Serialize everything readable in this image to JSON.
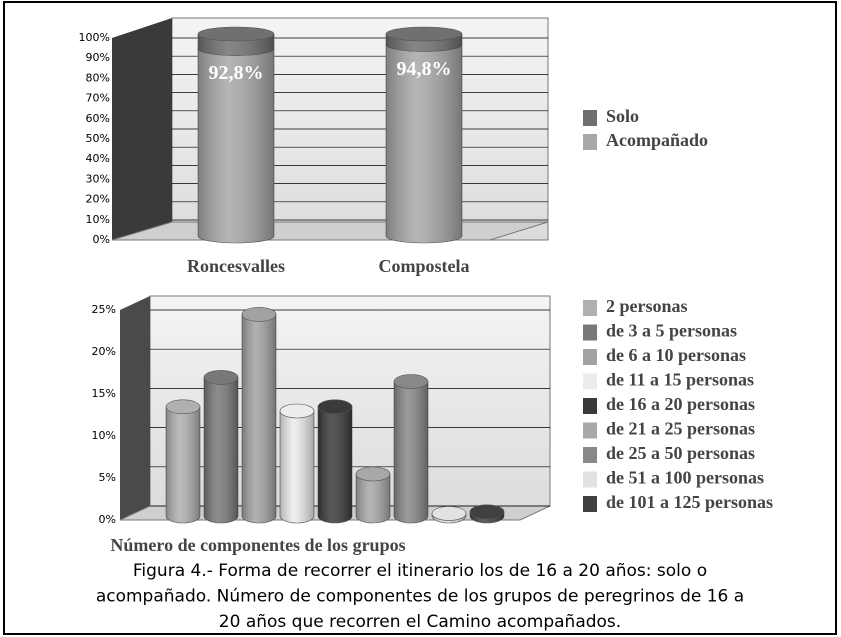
{
  "chart_data": [
    {
      "type": "stacked_bar",
      "categories": [
        "Roncesvalles",
        "Compostela"
      ],
      "series": [
        {
          "name": "Acompañado",
          "color": "#a8a8a8",
          "values": [
            92.8,
            94.8
          ],
          "value_labels": [
            "92,8%",
            "94,8%"
          ]
        },
        {
          "name": "Solo",
          "color": "#707070",
          "values": [
            7.2,
            5.2
          ]
        }
      ],
      "legend_order": [
        1,
        0
      ],
      "ylim": [
        0,
        100
      ],
      "yticks": [
        {
          "value": 0,
          "label": "0%"
        },
        {
          "value": 10,
          "label": "10%"
        },
        {
          "value": 20,
          "label": "20%"
        },
        {
          "value": 30,
          "label": "30%"
        },
        {
          "value": 40,
          "label": "40%"
        },
        {
          "value": 50,
          "label": "50%"
        },
        {
          "value": 60,
          "label": "60%"
        },
        {
          "value": 70,
          "label": "70%"
        },
        {
          "value": 80,
          "label": "80%"
        },
        {
          "value": 90,
          "label": "90%"
        },
        {
          "value": 100,
          "label": "100%"
        }
      ],
      "grid": true,
      "legend": "right"
    },
    {
      "type": "bar",
      "x_label": "Número de componentes de los grupos",
      "series": [
        {
          "name": "2 personas",
          "color": "#b0b0b0",
          "values": [
            13
          ]
        },
        {
          "name": "de 3 a 5 personas",
          "color": "#787878",
          "values": [
            16.5
          ]
        },
        {
          "name": "de 6 a 10 personas",
          "color": "#a2a2a2",
          "values": [
            24
          ]
        },
        {
          "name": "de 11 a 15 personas",
          "color": "#ececec",
          "values": [
            12.5
          ]
        },
        {
          "name": "de 16 a 20 personas",
          "color": "#3a3a3a",
          "values": [
            13
          ]
        },
        {
          "name": "de 21 a 25 personas",
          "color": "#a8a8a8",
          "values": [
            5
          ]
        },
        {
          "name": "de 25 a 50 personas",
          "color": "#888888",
          "values": [
            16
          ]
        },
        {
          "name": "de 51 a 100 personas",
          "color": "#e2e2e2",
          "values": [
            0.3
          ]
        },
        {
          "name": "de 101 a 125 personas",
          "color": "#404040",
          "values": [
            0.5
          ]
        }
      ],
      "ylim": [
        0,
        25
      ],
      "yticks": [
        {
          "value": 0,
          "label": "0%"
        },
        {
          "value": 5,
          "label": "5%"
        },
        {
          "value": 10,
          "label": "10%"
        },
        {
          "value": 15,
          "label": "15%"
        },
        {
          "value": 20,
          "label": "20%"
        },
        {
          "value": 25,
          "label": "25%"
        }
      ],
      "grid": true,
      "legend": "right"
    }
  ],
  "caption": [
    "Figura 4.- Forma de recorrer el itinerario los de 16 a 20 años: solo o",
    "acompañado. Número de componentes de los grupos de peregrinos de 16 a",
    "20 años que recorren el Camino acompañados."
  ]
}
